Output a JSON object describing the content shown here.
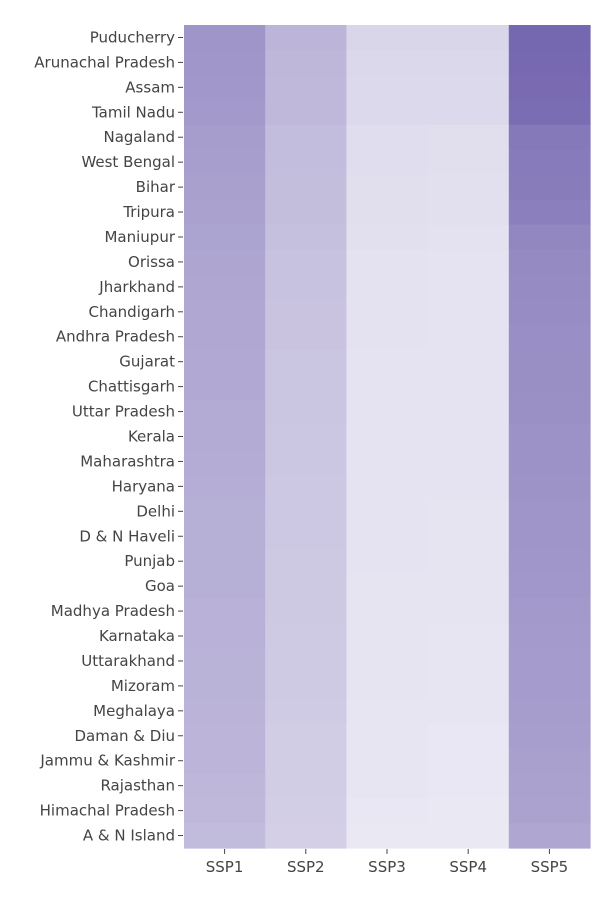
{
  "chart_data": {
    "type": "heatmap",
    "title": "",
    "xlabel": "",
    "ylabel": "",
    "colorscale": [
      "#f0eff7",
      "#7566b0"
    ],
    "grid": false,
    "legend": "none",
    "x": [
      "SSP1",
      "SSP2",
      "SSP3",
      "SSP4",
      "SSP5"
    ],
    "y": [
      "Puducherry",
      "Arunachal Pradesh",
      "Assam",
      "Tamil Nadu",
      "Nagaland",
      "West Bengal",
      "Bihar",
      "Tripura",
      "Maniupur",
      "Orissa",
      "Jharkhand",
      "Chandigarh",
      "Andhra Pradesh",
      "Gujarat",
      "Chattisgarh",
      "Uttar Pradesh",
      "Kerala",
      "Maharashtra",
      "Haryana",
      "Delhi",
      "D & N Haveli",
      "Punjab",
      "Goa",
      "Madhya Pradesh",
      "Karnataka",
      "Uttarakhand",
      "Mizoram",
      "Meghalaya",
      "Daman & Diu",
      "Jammu & Kashmir",
      "Rajasthan",
      "Himachal Pradesh",
      "A & N Island"
    ],
    "z": [
      [
        0.66,
        0.42,
        0.18,
        0.18,
        0.99
      ],
      [
        0.65,
        0.41,
        0.17,
        0.17,
        0.98
      ],
      [
        0.64,
        0.4,
        0.16,
        0.16,
        0.97
      ],
      [
        0.63,
        0.4,
        0.16,
        0.16,
        0.95
      ],
      [
        0.6,
        0.37,
        0.13,
        0.12,
        0.86
      ],
      [
        0.59,
        0.37,
        0.13,
        0.12,
        0.85
      ],
      [
        0.58,
        0.36,
        0.12,
        0.11,
        0.84
      ],
      [
        0.57,
        0.36,
        0.12,
        0.11,
        0.82
      ],
      [
        0.55,
        0.34,
        0.11,
        0.1,
        0.76
      ],
      [
        0.54,
        0.33,
        0.1,
        0.09,
        0.74
      ],
      [
        0.53,
        0.33,
        0.1,
        0.09,
        0.73
      ],
      [
        0.52,
        0.32,
        0.1,
        0.09,
        0.72
      ],
      [
        0.52,
        0.32,
        0.1,
        0.09,
        0.71
      ],
      [
        0.51,
        0.31,
        0.09,
        0.09,
        0.7
      ],
      [
        0.51,
        0.31,
        0.09,
        0.09,
        0.7
      ],
      [
        0.5,
        0.31,
        0.09,
        0.09,
        0.69
      ],
      [
        0.5,
        0.3,
        0.09,
        0.09,
        0.68
      ],
      [
        0.49,
        0.3,
        0.09,
        0.09,
        0.68
      ],
      [
        0.48,
        0.29,
        0.09,
        0.09,
        0.67
      ],
      [
        0.47,
        0.29,
        0.09,
        0.08,
        0.66
      ],
      [
        0.47,
        0.29,
        0.09,
        0.08,
        0.66
      ],
      [
        0.46,
        0.28,
        0.09,
        0.08,
        0.65
      ],
      [
        0.46,
        0.28,
        0.08,
        0.08,
        0.64
      ],
      [
        0.45,
        0.28,
        0.08,
        0.08,
        0.63
      ],
      [
        0.45,
        0.27,
        0.08,
        0.07,
        0.62
      ],
      [
        0.44,
        0.27,
        0.08,
        0.07,
        0.61
      ],
      [
        0.44,
        0.27,
        0.08,
        0.07,
        0.61
      ],
      [
        0.43,
        0.26,
        0.07,
        0.07,
        0.6
      ],
      [
        0.42,
        0.25,
        0.07,
        0.06,
        0.59
      ],
      [
        0.42,
        0.25,
        0.07,
        0.06,
        0.58
      ],
      [
        0.41,
        0.25,
        0.07,
        0.06,
        0.57
      ],
      [
        0.4,
        0.24,
        0.06,
        0.05,
        0.56
      ],
      [
        0.38,
        0.23,
        0.05,
        0.05,
        0.53
      ]
    ]
  }
}
